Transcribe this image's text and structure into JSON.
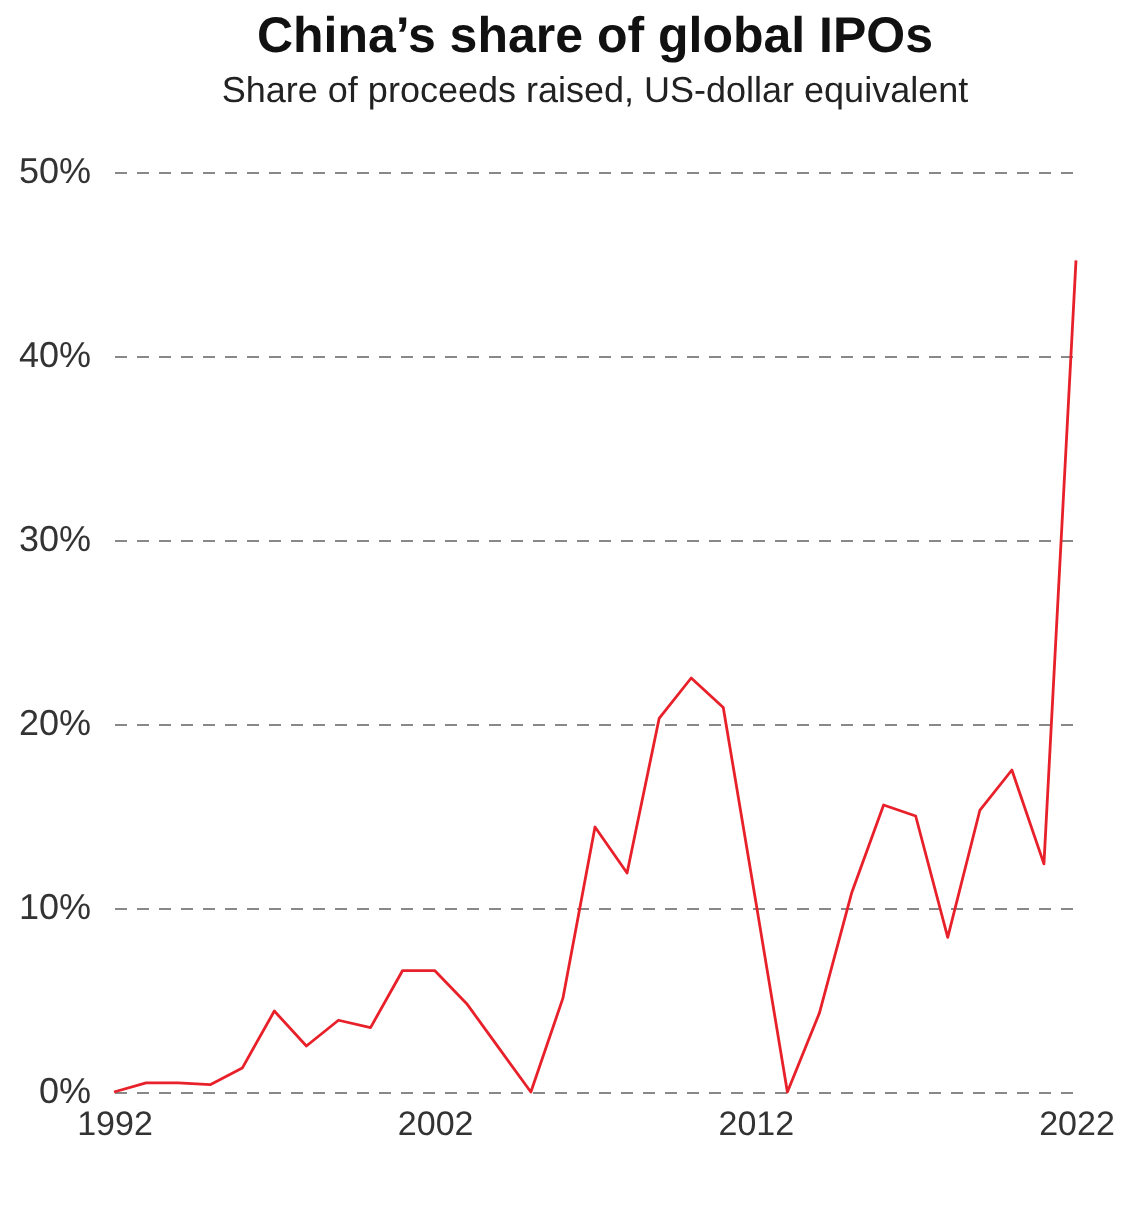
{
  "chart_data": {
    "type": "line",
    "title": "China’s share of global IPOs",
    "subtitle": "Share of proceeds raised, US-dollar equivalent",
    "x": [
      1992,
      1993,
      1994,
      1995,
      1996,
      1997,
      1998,
      1999,
      2000,
      2001,
      2002,
      2003,
      2004,
      2005,
      2006,
      2007,
      2008,
      2009,
      2010,
      2011,
      2012,
      2013,
      2014,
      2015,
      2016,
      2017,
      2018,
      2019,
      2020,
      2021,
      2022
    ],
    "series": [
      {
        "color": "#e8202a",
        "values": [
          0,
          0.5,
          0.5,
          0.4,
          1.3,
          4.4,
          2.5,
          3.9,
          3.5,
          6.6,
          6.6,
          4.8,
          2.4,
          0,
          5.1,
          14.4,
          11.9,
          20.3,
          22.5,
          20.9,
          10.5,
          0,
          4.3,
          10.8,
          15.6,
          15.0,
          8.4,
          15.3,
          17.5,
          12.4,
          45.2
        ]
      }
    ],
    "xlim": [
      1992,
      2022
    ],
    "xticks": [
      1992,
      2002,
      2012,
      2022
    ],
    "ylim": [
      0,
      50
    ],
    "yticks": [
      {
        "value": 0,
        "label": "0%"
      },
      {
        "value": 10,
        "label": "10%"
      },
      {
        "value": 20,
        "label": "20%"
      },
      {
        "value": 30,
        "label": "30%"
      },
      {
        "value": 40,
        "label": "40%"
      },
      {
        "value": 50,
        "label": "50%"
      }
    ],
    "grid": "y",
    "marker": "none",
    "line_style": "solid"
  }
}
